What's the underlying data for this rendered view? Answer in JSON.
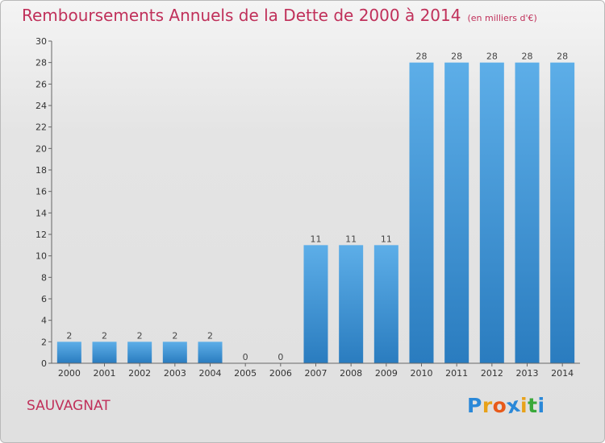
{
  "title": "Remboursements Annuels de la Dette de 2000 à 2014",
  "subtitle": "(en milliers d'€)",
  "location": "SAUVAGNAT",
  "logo": {
    "letters": [
      "P",
      "r",
      "o",
      "x",
      "i",
      "t",
      "i"
    ],
    "colors": [
      "#2a88d8",
      "#e8a21a",
      "#e85a1a",
      "#2a88d8",
      "#e8a21a",
      "#3aa83a",
      "#2a88d8"
    ]
  },
  "colors": {
    "bar_light": "#5daee8",
    "bar_dark": "#2a7cbf",
    "text_accent": "#c0305a"
  },
  "chart_data": {
    "type": "bar",
    "categories": [
      "2000",
      "2001",
      "2002",
      "2003",
      "2004",
      "2005",
      "2006",
      "2007",
      "2008",
      "2009",
      "2010",
      "2011",
      "2012",
      "2013",
      "2014"
    ],
    "values": [
      2,
      2,
      2,
      2,
      2,
      0,
      0,
      11,
      11,
      11,
      28,
      28,
      28,
      28,
      28
    ],
    "data_labels": [
      "2",
      "2",
      "2",
      "2",
      "2",
      "0",
      "0",
      "11",
      "11",
      "11",
      "28",
      "28",
      "28",
      "28",
      "28"
    ],
    "yticks": [
      0,
      2,
      4,
      6,
      8,
      10,
      12,
      14,
      16,
      18,
      20,
      22,
      24,
      26,
      28,
      30
    ],
    "ylim": [
      0,
      30
    ],
    "grid": false,
    "legend": "none"
  }
}
